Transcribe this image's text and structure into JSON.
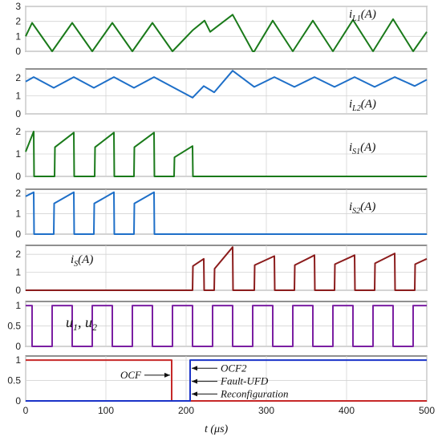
{
  "chart_data": {
    "type": "line",
    "x_axis": {
      "label": "t (μs)",
      "ticks": [
        "0",
        "100",
        "200",
        "300",
        "400",
        "500"
      ],
      "range": [
        0,
        500
      ]
    },
    "grid": true,
    "panels": [
      {
        "label": {
          "main": "i",
          "sub": "L1",
          "unit": "(A)"
        },
        "yticks": [
          "0",
          "1",
          "2",
          "3"
        ],
        "ylim": [
          0,
          3
        ],
        "series": [
          {
            "color": "#1a7a1a",
            "x": [
              0,
              8,
              33,
              58,
              83,
              108,
              133,
              158,
              183,
              208,
              223,
              230,
              258,
              283,
              285,
              308,
              333,
              358,
              383,
              408,
              433,
              458,
              483,
              500
            ],
            "y": [
              1.0,
              1.9,
              0.0,
              1.9,
              0.0,
              1.9,
              0.0,
              1.9,
              0.0,
              1.4,
              2.05,
              1.3,
              2.45,
              0.0,
              0.0,
              2.05,
              0.0,
              2.05,
              0.0,
              2.1,
              0.0,
              2.15,
              0.0,
              1.3
            ]
          }
        ]
      },
      {
        "label": {
          "main": "i",
          "sub": "L2",
          "unit": "(A)"
        },
        "yticks": [
          "0",
          "1",
          "2"
        ],
        "ylim": [
          0,
          2.5
        ],
        "series": [
          {
            "color": "#1e6fc8",
            "x": [
              0,
              10,
              35,
              60,
              85,
              110,
              135,
              160,
              185,
              208,
              222,
              235,
              258,
              285,
              310,
              335,
              360,
              385,
              410,
              435,
              460,
              485,
              500
            ],
            "y": [
              1.8,
              2.05,
              1.45,
              2.05,
              1.45,
              2.05,
              1.45,
              2.05,
              1.45,
              0.9,
              1.55,
              1.2,
              2.4,
              1.5,
              2.05,
              1.5,
              2.05,
              1.5,
              2.05,
              1.5,
              2.05,
              1.55,
              1.9
            ]
          }
        ]
      },
      {
        "label": {
          "main": "i",
          "sub": "S1",
          "unit": "(A)"
        },
        "yticks": [
          "0",
          "1",
          "2"
        ],
        "ylim": [
          0,
          2
        ],
        "series": [
          {
            "color": "#1a7a1a",
            "x": [
              0,
              10,
              10.5,
              36,
              36.5,
              60,
              60.5,
              86,
              86.5,
              110,
              110.5,
              135,
              135.5,
              160,
              160.5,
              185,
              185.5,
              208,
              208.5,
              500
            ],
            "y": [
              1.1,
              2.0,
              0.0,
              0.0,
              1.3,
              1.95,
              0.0,
              0.0,
              1.3,
              1.95,
              0.0,
              0.0,
              1.3,
              1.95,
              0.0,
              0.0,
              0.85,
              1.35,
              0.0,
              0.0
            ]
          }
        ]
      },
      {
        "label": {
          "main": "i",
          "sub": "S2",
          "unit": "(A)"
        },
        "yticks": [
          "0",
          "1",
          "2"
        ],
        "ylim": [
          0,
          2.2
        ],
        "series": [
          {
            "color": "#1e6fc8",
            "x": [
              0,
              10,
              10.5,
              35,
              35.5,
              60,
              60.5,
              85,
              85.5,
              110,
              110.5,
              135,
              135.5,
              160,
              160.5,
              500
            ],
            "y": [
              1.85,
              2.05,
              0.0,
              0.0,
              1.5,
              2.05,
              0.0,
              0.0,
              1.5,
              2.05,
              0.0,
              0.0,
              1.5,
              2.05,
              0.0,
              0.0
            ]
          }
        ]
      },
      {
        "label": {
          "main": "i",
          "sub": "S",
          "unit": "(A)"
        },
        "yticks": [
          "0",
          "1",
          "2"
        ],
        "ylim": [
          0,
          2.5
        ],
        "series": [
          {
            "color": "#8b1c1c",
            "x": [
              0,
              208,
              208.5,
              222,
              222.5,
              235,
              235.5,
              258,
              258.5,
              285,
              285.5,
              310,
              310.5,
              335,
              335.5,
              360,
              360.5,
              385,
              385.5,
              410,
              410.5,
              435,
              435.5,
              460,
              460.5,
              485,
              485.5,
              500
            ],
            "y": [
              0.0,
              0.0,
              1.35,
              1.75,
              0.0,
              0.0,
              1.2,
              2.4,
              0.0,
              0.0,
              1.4,
              1.9,
              0.0,
              0.0,
              1.4,
              1.95,
              0.0,
              0.0,
              1.45,
              1.95,
              0.0,
              0.0,
              1.5,
              2.05,
              0.0,
              0.0,
              1.45,
              1.75
            ]
          }
        ]
      },
      {
        "label": {
          "main": "u",
          "sub": "1",
          "tail": ", ",
          "main2": "u",
          "sub2": "2"
        },
        "yticks": [
          "0",
          "0.5",
          "1"
        ],
        "ylim": [
          0,
          1.1
        ],
        "series": [
          {
            "color": "#7b1fa2",
            "x": [
              0,
              8,
              8,
              33,
              33,
              58,
              58,
              83,
              83,
              108,
              108,
              133,
              133,
              158,
              158,
              183,
              183,
              208,
              208,
              233,
              233,
              258,
              258,
              283,
              283,
              308,
              308,
              333,
              333,
              358,
              358,
              383,
              383,
              408,
              408,
              433,
              433,
              458,
              458,
              483,
              483,
              500
            ],
            "y": [
              1,
              1,
              0,
              0,
              1,
              1,
              0,
              0,
              1,
              1,
              0,
              0,
              1,
              1,
              0,
              0,
              1,
              1,
              0,
              0,
              1,
              1,
              0,
              0,
              1,
              1,
              0,
              0,
              1,
              1,
              0,
              0,
              1,
              1,
              0,
              0,
              1,
              1,
              0,
              0,
              1,
              1
            ]
          }
        ]
      },
      {
        "label": null,
        "yticks": [
          "0",
          "0.5",
          "1"
        ],
        "ylim": [
          0,
          1.1
        ],
        "series": [
          {
            "color": "#c62828",
            "x": [
              0,
              182,
              182,
              500
            ],
            "y": [
              1,
              1,
              0,
              0
            ]
          },
          {
            "color": "#1a33c8",
            "x": [
              0,
              205,
              205,
              500
            ],
            "y": [
              0,
              0,
              1,
              1
            ]
          }
        ],
        "annotations": [
          {
            "text": "OCF",
            "x": 182,
            "y": 0.63,
            "side": "left"
          },
          {
            "text": "OCF2",
            "x": 205,
            "y": 0.8,
            "side": "right"
          },
          {
            "text": "Fault-UFD",
            "x": 205,
            "y": 0.48,
            "side": "right"
          },
          {
            "text": "Reconfiguration",
            "x": 205,
            "y": 0.17,
            "side": "right"
          }
        ]
      }
    ]
  }
}
